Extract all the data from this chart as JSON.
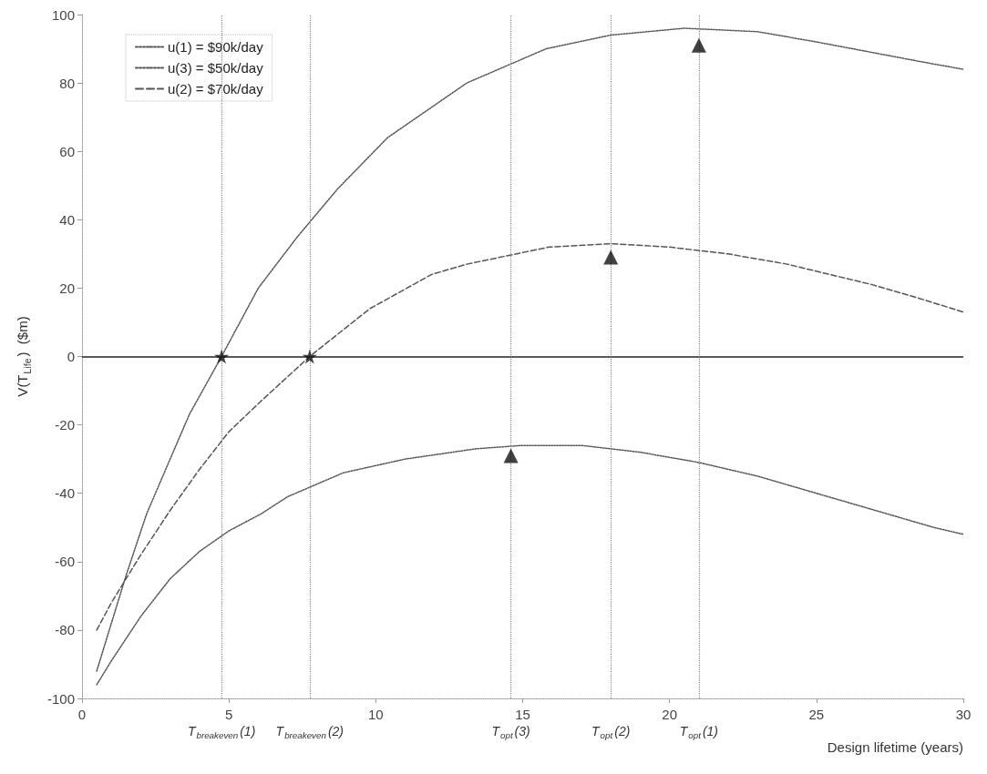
{
  "chart_data": {
    "type": "line",
    "xlabel": "Design lifetime (years)",
    "ylabel": "V(T$_{Life}$)  ($m)",
    "xlim": [
      0,
      30
    ],
    "xticks": [
      0,
      5,
      10,
      15,
      20,
      25,
      30
    ],
    "ylim": [
      -100,
      100
    ],
    "yticks": [
      -100,
      -80,
      -60,
      -40,
      -20,
      0,
      20,
      40,
      60,
      80,
      100
    ],
    "grid": false,
    "legend": "top left",
    "marker": "none",
    "series": [
      {
        "name": "u(1) = $90k/day",
        "color": "#555555",
        "line_style": "dotted",
        "x": [
          0.5,
          1,
          1.5,
          2.2,
          3.1,
          3.65,
          4.75,
          6,
          7.33,
          8.7,
          10.4,
          13.1,
          15.8,
          18,
          20.5,
          23,
          25,
          28.7,
          30
        ],
        "values": [
          -92,
          -78,
          -64,
          -46,
          -28,
          -17,
          0,
          20,
          35,
          49,
          64,
          80,
          90,
          94,
          96,
          95,
          92,
          86,
          84
        ]
      },
      {
        "name": "u(3) = $50k/day",
        "color": "#555555",
        "line_style": "dotted",
        "x": [
          0.5,
          1,
          2,
          3,
          4,
          5,
          6.1,
          7,
          8.9,
          11,
          13.4,
          15,
          17,
          19,
          21,
          23,
          25,
          27,
          29,
          30
        ],
        "values": [
          -96,
          -89,
          -76,
          -65,
          -57,
          -51,
          -46,
          -41,
          -34,
          -30,
          -27,
          -26,
          -26,
          -28,
          -31,
          -35,
          -40,
          -45,
          -50,
          -52
        ]
      },
      {
        "name": "u(2) = $70k/day",
        "color": "#555555",
        "line_style": "dashed",
        "x": [
          0.5,
          1,
          2,
          3,
          4,
          5,
          6.1,
          7.75,
          9.8,
          11.9,
          13.1,
          15.9,
          18,
          20,
          22,
          24,
          26.9,
          28.5,
          30
        ],
        "values": [
          -80,
          -72,
          -58,
          -45,
          -33,
          -22,
          -13,
          0,
          14,
          24,
          27,
          32,
          33,
          32,
          30,
          27,
          21,
          17,
          13
        ]
      },
      {
        "type": "scatter",
        "marker": "star",
        "color": "#111111",
        "x": [
          4.75,
          7.75
        ],
        "values": [
          0,
          0
        ]
      },
      {
        "type": "scatter",
        "marker": "triangle",
        "color": "#111111",
        "x": [
          14.6,
          18,
          21
        ],
        "values": [
          -29,
          29,
          91
        ]
      }
    ],
    "ref_lines": [
      {
        "axis": "y",
        "value": 0,
        "color": "#222222",
        "line_style": "solid"
      },
      {
        "axis": "x",
        "value": 4.75,
        "label": "T$_{breakeven}$(1)",
        "color": "#888888",
        "line_style": "dotted"
      },
      {
        "axis": "x",
        "value": 7.75,
        "label": "T$_{breakeven}$(2)",
        "color": "#888888",
        "line_style": "dotted"
      },
      {
        "axis": "x",
        "value": 14.6,
        "label": "T$_{opt}$(3)",
        "color": "#888888",
        "line_style": "dotted"
      },
      {
        "axis": "x",
        "value": 18,
        "label": "T$_{opt}$(2)",
        "color": "#888888",
        "line_style": "dotted"
      },
      {
        "axis": "x",
        "value": 21,
        "label": "T$_{opt}$(1)",
        "color": "#888888",
        "line_style": "dotted"
      }
    ]
  }
}
